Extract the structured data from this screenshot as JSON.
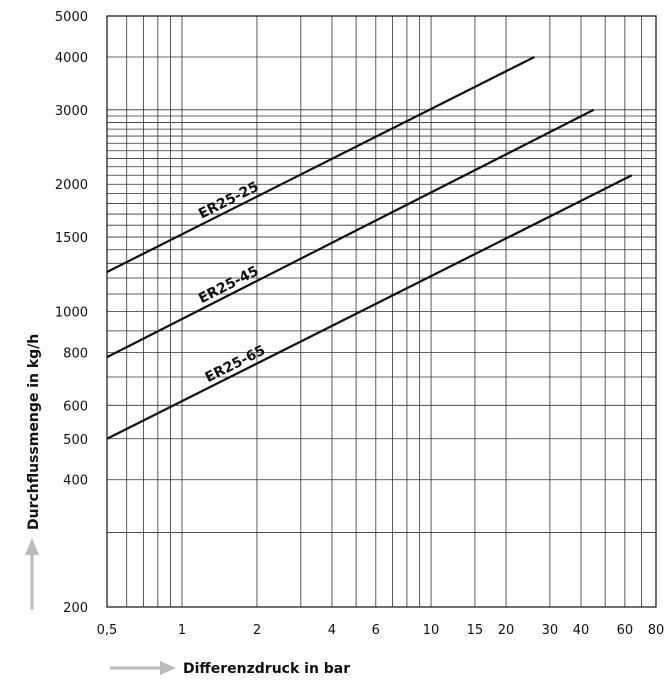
{
  "chart_data": {
    "type": "line",
    "x_scale": "log",
    "y_scale": "log",
    "xlabel": "Differenzdruck in bar",
    "ylabel": "Durchflussmenge in kg/h",
    "xlim": [
      0.5,
      80
    ],
    "ylim": [
      200,
      5000
    ],
    "grid": true,
    "x_tick_labels": [
      {
        "v": 0.5,
        "t": "0,5"
      },
      {
        "v": 1,
        "t": "1"
      },
      {
        "v": 2,
        "t": "2"
      },
      {
        "v": 4,
        "t": "4"
      },
      {
        "v": 6,
        "t": "6"
      },
      {
        "v": 10,
        "t": "10"
      },
      {
        "v": 15,
        "t": "15"
      },
      {
        "v": 20,
        "t": "20"
      },
      {
        "v": 30,
        "t": "30"
      },
      {
        "v": 40,
        "t": "40"
      },
      {
        "v": 60,
        "t": "60"
      },
      {
        "v": 80,
        "t": "80"
      }
    ],
    "y_tick_labels": [
      {
        "v": 200,
        "t": "200"
      },
      {
        "v": 400,
        "t": "400"
      },
      {
        "v": 500,
        "t": "500"
      },
      {
        "v": 600,
        "t": "600"
      },
      {
        "v": 800,
        "t": "800"
      },
      {
        "v": 1000,
        "t": "1000"
      },
      {
        "v": 1500,
        "t": "1500"
      },
      {
        "v": 2000,
        "t": "2000"
      },
      {
        "v": 3000,
        "t": "3000"
      },
      {
        "v": 4000,
        "t": "4000"
      },
      {
        "v": 5000,
        "t": "5000"
      }
    ],
    "x_grid": [
      0.5,
      0.6,
      0.7,
      0.8,
      0.9,
      1,
      2,
      3,
      4,
      5,
      6,
      7,
      8,
      9,
      10,
      15,
      20,
      30,
      40,
      50,
      60,
      70,
      80
    ],
    "y_grid": [
      200,
      300,
      400,
      500,
      600,
      700,
      800,
      900,
      1000,
      1100,
      1200,
      1300,
      1400,
      1500,
      1600,
      1700,
      1800,
      1900,
      2000,
      2100,
      2200,
      2300,
      2400,
      2500,
      2600,
      2700,
      2800,
      2900,
      3000,
      4000,
      5000
    ],
    "series": [
      {
        "name": "ER25-25",
        "x": [
          0.5,
          26
        ],
        "y": [
          1240,
          4000
        ]
      },
      {
        "name": "ER25-45",
        "x": [
          0.5,
          45
        ],
        "y": [
          780,
          3000
        ]
      },
      {
        "name": "ER25-65",
        "x": [
          0.5,
          64
        ],
        "y": [
          500,
          2100
        ]
      }
    ]
  }
}
